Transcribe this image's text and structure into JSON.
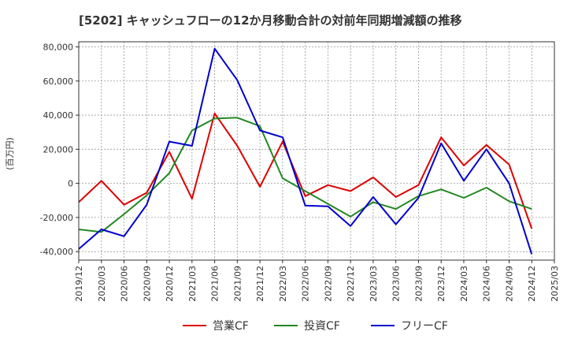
{
  "chart_data": {
    "type": "line",
    "title": "[5202]  キャッシュフローの12か月移動合計の対前年同期増減額の推移",
    "ylabel": "(百万円)",
    "xlabel": "",
    "ylim": [
      -45000,
      83000
    ],
    "yticks": [
      80000,
      60000,
      40000,
      20000,
      0,
      -20000,
      -40000
    ],
    "ytick_labels": [
      "80,000",
      "60,000",
      "40,000",
      "20,000",
      "0",
      "-20,000",
      "-40,000"
    ],
    "x": [
      "2019/12",
      "2020/03",
      "2020/06",
      "2020/09",
      "2020/12",
      "2021/03",
      "2021/06",
      "2021/09",
      "2021/12",
      "2022/03",
      "2022/06",
      "2022/09",
      "2022/12",
      "2023/03",
      "2023/06",
      "2023/09",
      "2023/12",
      "2024/03",
      "2024/06",
      "2024/09",
      "2024/12",
      "2025/03"
    ],
    "grid": true,
    "legend_position": "bottom",
    "series": [
      {
        "name": "営業CF",
        "color": "#dd0000",
        "values": [
          -11000,
          1500,
          -12500,
          -5500,
          18500,
          -9000,
          41000,
          22000,
          -2000,
          24500,
          -7500,
          -1000,
          -4500,
          3500,
          -8000,
          -1000,
          27000,
          10500,
          22500,
          11000,
          -26500,
          null
        ]
      },
      {
        "name": "投資CF",
        "color": "#228822",
        "values": [
          -27000,
          -28500,
          -18000,
          -7000,
          6000,
          31000,
          38000,
          38500,
          33500,
          3000,
          -4500,
          -12000,
          -19500,
          -11000,
          -15000,
          -7500,
          -3500,
          -8500,
          -2500,
          -10500,
          -15000,
          null
        ]
      },
      {
        "name": "フリーCF",
        "color": "#0000cc",
        "values": [
          -38500,
          -27000,
          -31000,
          -12500,
          24500,
          22000,
          79000,
          60500,
          31000,
          27000,
          -13000,
          -13500,
          -25000,
          -8000,
          -24000,
          -8500,
          23500,
          1500,
          20000,
          0,
          -41500,
          null
        ]
      }
    ]
  }
}
